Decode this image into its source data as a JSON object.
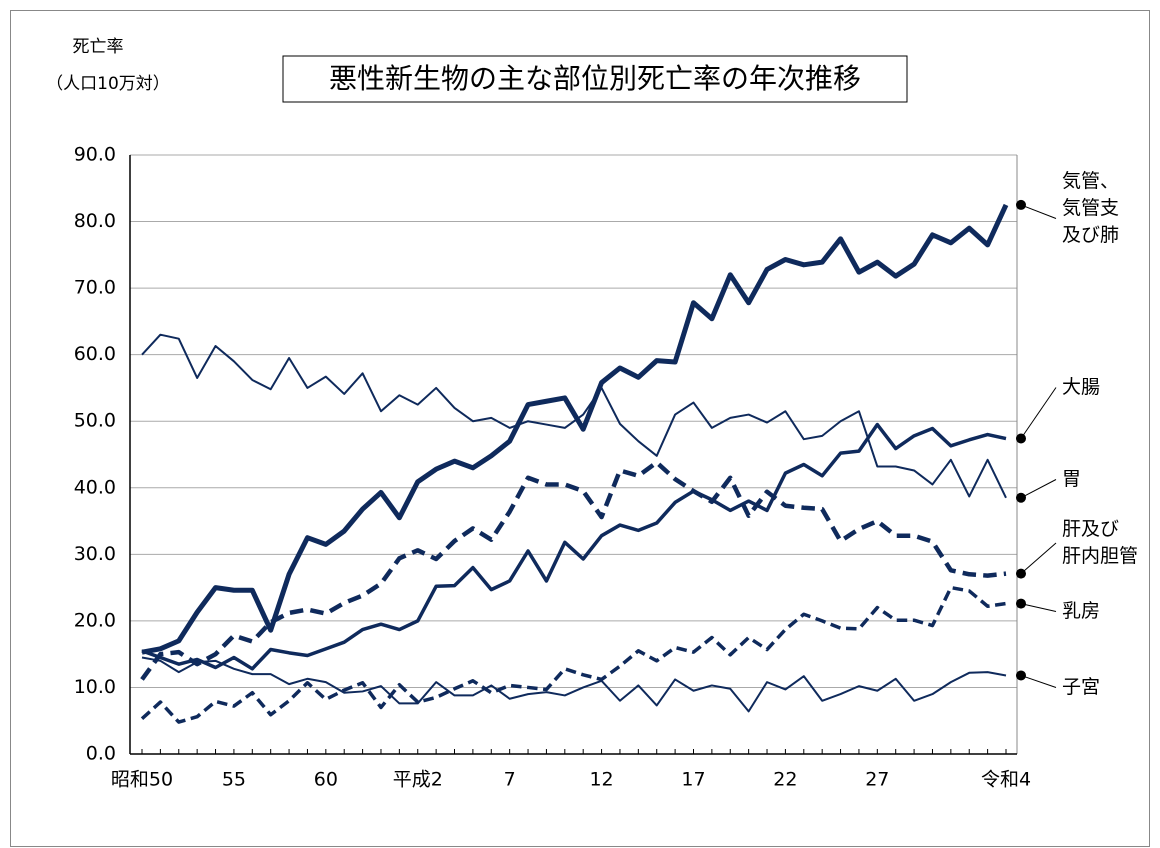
{
  "chart_data": {
    "type": "line",
    "title": "悪性新生物の主な部位別死亡率の年次推移",
    "y_label": "死亡率",
    "y_unit": "（人口10万対）",
    "categories": [
      "昭和50",
      null,
      null,
      null,
      null,
      "55",
      null,
      null,
      null,
      null,
      "60",
      null,
      null,
      null,
      null,
      "平成2",
      null,
      null,
      null,
      null,
      "7",
      null,
      null,
      null,
      null,
      "12",
      null,
      null,
      null,
      null,
      "17",
      null,
      null,
      null,
      null,
      "22",
      null,
      null,
      null,
      null,
      "27",
      null,
      null,
      null,
      null,
      null,
      null,
      "令和4"
    ],
    "ylim": [
      0,
      90
    ],
    "yticks": [
      {
        "value": 0,
        "label": "0.0"
      },
      {
        "value": 10,
        "label": "10.0"
      },
      {
        "value": 20,
        "label": "20.0"
      },
      {
        "value": 30,
        "label": "30.0"
      },
      {
        "value": 40,
        "label": "40.0"
      },
      {
        "value": 50,
        "label": "50.0"
      },
      {
        "value": 60,
        "label": "60.0"
      },
      {
        "value": 70,
        "label": "70.0"
      },
      {
        "value": 80,
        "label": "80.0"
      },
      {
        "value": 90,
        "label": "90.0"
      }
    ],
    "grid": true,
    "series": [
      {
        "name": "気管、\n気管支\n及び肺",
        "color": "#0f2a5c",
        "line_width": 5,
        "dashed": false,
        "values": [
          15.3,
          15.8,
          17.0,
          21.3,
          25.0,
          24.6,
          24.6,
          18.6,
          27.0,
          32.5,
          31.5,
          33.5,
          36.8,
          39.3,
          35.5,
          40.9,
          42.8,
          44.0,
          43.0,
          44.8,
          47.0,
          52.5,
          53.0,
          53.5,
          48.8,
          55.8,
          58.0,
          56.6,
          59.1,
          58.9,
          67.8,
          65.4,
          72.0,
          67.8,
          72.8,
          74.3,
          73.5,
          73.9,
          77.4,
          72.4,
          73.9,
          71.8,
          73.6,
          78.0,
          76.8,
          79.0,
          76.5,
          82.5
        ]
      },
      {
        "name": "大腸",
        "color": "#0f2a5c",
        "line_width": 3.5,
        "dashed": false,
        "values": [
          15.5,
          14.5,
          13.5,
          14.2,
          13.0,
          14.5,
          12.8,
          15.7,
          15.2,
          14.8,
          15.8,
          16.8,
          18.7,
          19.5,
          18.7,
          20.0,
          25.2,
          25.3,
          28.0,
          24.7,
          26.0,
          30.5,
          26.0,
          31.8,
          29.3,
          32.8,
          34.4,
          33.6,
          34.7,
          37.8,
          39.5,
          38.2,
          36.6,
          38.0,
          36.6,
          42.2,
          43.5,
          41.8,
          45.2,
          45.5,
          49.5,
          45.9,
          47.8,
          48.9,
          46.3,
          47.2,
          48.0,
          47.4
        ]
      },
      {
        "name": "胃",
        "color": "#0f2a5c",
        "line_width": 2,
        "dashed": false,
        "values": [
          60.0,
          63.0,
          62.4,
          56.5,
          61.3,
          59.0,
          56.2,
          54.8,
          59.5,
          55.0,
          56.7,
          54.1,
          57.2,
          51.5,
          53.9,
          52.5,
          55.0,
          52.0,
          50.0,
          50.5,
          49.0,
          50.0,
          49.5,
          49.0,
          51.0,
          55.0,
          49.6,
          47.0,
          44.8,
          51.0,
          52.8,
          49.0,
          50.5,
          51.0,
          49.8,
          51.5,
          47.3,
          47.8,
          50.0,
          51.5,
          43.2,
          43.2,
          42.6,
          40.5,
          44.2,
          38.7,
          44.2,
          38.5
        ]
      },
      {
        "name": "肝及び\n肝内胆管",
        "color": "#0f2a5c",
        "line_width": 4.5,
        "dashed": true,
        "values": [
          11.2,
          15.0,
          15.3,
          13.5,
          15.0,
          17.8,
          16.9,
          19.8,
          21.2,
          21.7,
          21.1,
          22.7,
          23.8,
          25.6,
          29.4,
          30.6,
          29.3,
          32.0,
          33.9,
          32.2,
          36.4,
          41.5,
          40.5,
          40.5,
          39.5,
          35.6,
          42.6,
          41.8,
          43.8,
          41.3,
          39.5,
          37.9,
          41.5,
          35.8,
          39.4,
          37.3,
          37.0,
          36.8,
          32.0,
          33.8,
          35.0,
          32.8,
          32.8,
          31.9,
          27.6,
          27.0,
          26.8,
          27.1
        ]
      },
      {
        "name": "乳房",
        "color": "#0f2a5c",
        "line_width": 3.5,
        "dashed": true,
        "values": [
          5.3,
          7.8,
          4.8,
          5.6,
          7.9,
          7.2,
          9.2,
          5.9,
          8.0,
          10.7,
          8.2,
          9.6,
          10.7,
          7.0,
          10.4,
          7.8,
          8.5,
          9.8,
          11.0,
          9.2,
          10.3,
          10.0,
          9.7,
          12.8,
          11.9,
          11.2,
          13.2,
          15.5,
          14.0,
          16.0,
          15.3,
          17.5,
          14.9,
          17.5,
          15.7,
          18.7,
          21.0,
          20.0,
          18.9,
          18.8,
          22.0,
          20.1,
          20.1,
          19.3,
          25.0,
          24.5,
          22.2,
          22.6
        ]
      },
      {
        "name": "子宮",
        "color": "#0f2a5c",
        "line_width": 2,
        "dashed": false,
        "values": [
          14.5,
          14.0,
          12.3,
          13.8,
          14.0,
          12.8,
          12.0,
          12.0,
          10.5,
          11.3,
          10.8,
          9.2,
          9.4,
          10.2,
          7.6,
          7.6,
          10.8,
          8.8,
          8.8,
          10.3,
          8.3,
          9.0,
          9.3,
          8.8,
          10.0,
          11.0,
          8.0,
          10.3,
          7.3,
          11.2,
          9.5,
          10.3,
          9.8,
          6.4,
          10.8,
          9.7,
          11.7,
          8.0,
          9.0,
          10.2,
          9.5,
          11.3,
          8.0,
          9.0,
          10.8,
          12.2,
          12.3,
          11.8
        ]
      }
    ]
  }
}
